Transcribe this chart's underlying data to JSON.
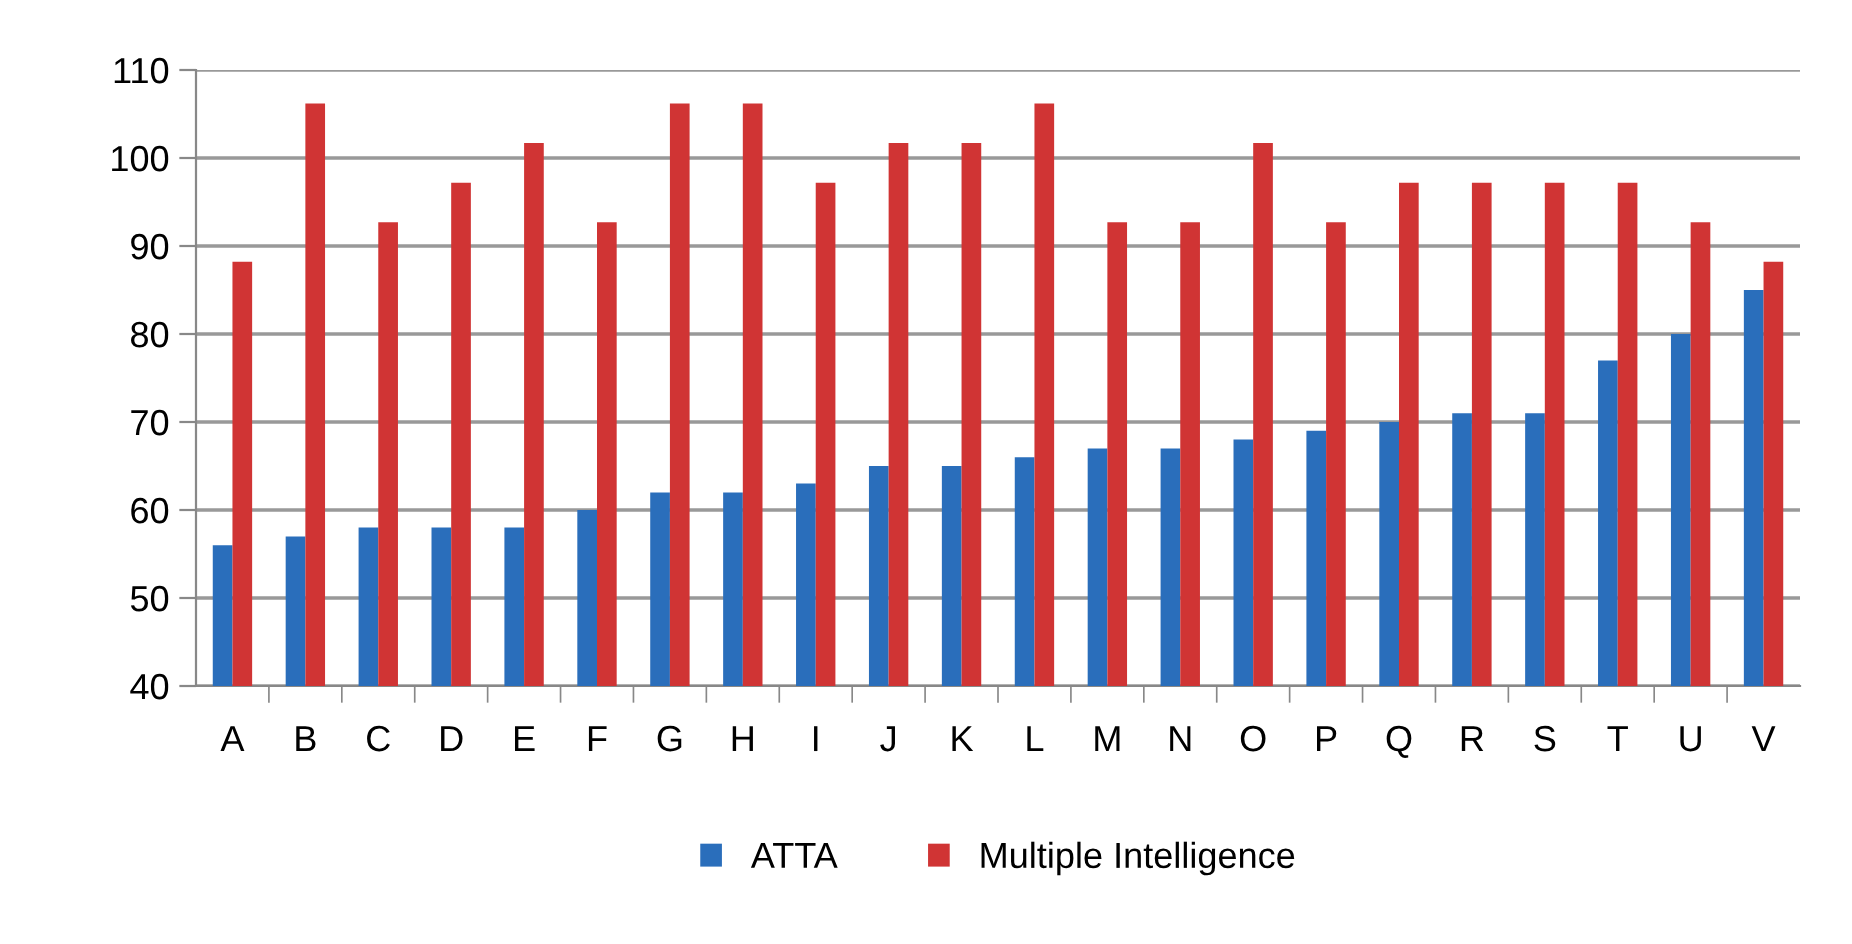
{
  "chart_data": {
    "type": "bar",
    "categories": [
      "A",
      "B",
      "C",
      "D",
      "E",
      "F",
      "G",
      "H",
      "I",
      "J",
      "K",
      "L",
      "M",
      "N",
      "O",
      "P",
      "Q",
      "R",
      "S",
      "T",
      "U",
      "V"
    ],
    "series": [
      {
        "name": "ATTA",
        "color": "#2a6ebb",
        "values": [
          56,
          57,
          58,
          58,
          58,
          60,
          62,
          62,
          63,
          65,
          65,
          66,
          67,
          67,
          68,
          69,
          70,
          71,
          71,
          77,
          80,
          85
        ]
      },
      {
        "name": "Multiple Intelligence",
        "color": "#d03434",
        "values": [
          88.2,
          106.2,
          92.7,
          97.2,
          101.7,
          92.7,
          106.2,
          106.2,
          97.2,
          101.7,
          101.7,
          106.2,
          92.7,
          92.7,
          101.7,
          92.7,
          97.2,
          97.2,
          97.2,
          97.2,
          92.7,
          88.2
        ]
      }
    ],
    "ylim": [
      40,
      110
    ],
    "yticks": [
      40,
      50,
      60,
      70,
      80,
      90,
      100,
      110
    ],
    "grid": "y",
    "legend": "bottom"
  }
}
